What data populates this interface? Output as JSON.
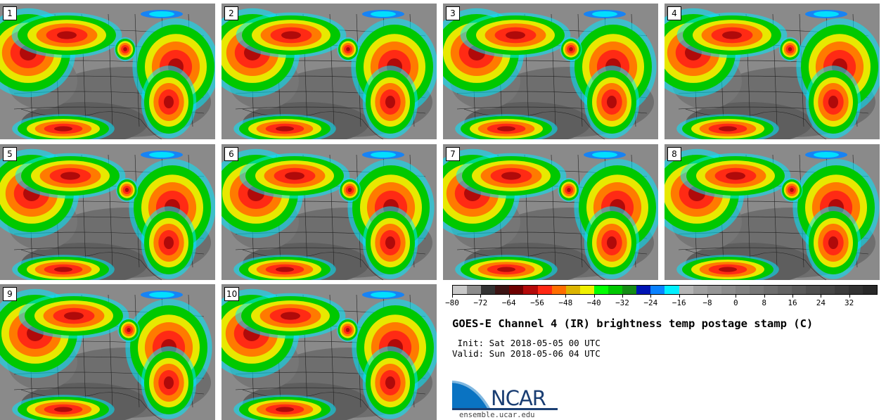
{
  "panels": [
    {
      "label": "1"
    },
    {
      "label": "2"
    },
    {
      "label": "3"
    },
    {
      "label": "4"
    },
    {
      "label": "5"
    },
    {
      "label": "6"
    },
    {
      "label": "7"
    },
    {
      "label": "8"
    },
    {
      "label": "9"
    },
    {
      "label": "10"
    }
  ],
  "colorbar": {
    "colors": [
      "#c8c8c8",
      "#8c8c8c",
      "#323232",
      "#3c1414",
      "#6e0000",
      "#b40a0a",
      "#ff2814",
      "#ff6e00",
      "#dcb400",
      "#f0f000",
      "#00ff00",
      "#00c800",
      "#148c14",
      "#0014b4",
      "#0a82ff",
      "#00f0ff",
      "#b4b4b4",
      "#a0a0a0",
      "#969696",
      "#8c8c8c",
      "#828282",
      "#787878",
      "#6e6e6e",
      "#646464",
      "#5a5a5a",
      "#505050",
      "#464646",
      "#3c3c3c",
      "#323232",
      "#282828"
    ],
    "tick_labels": [
      "−80",
      "−72",
      "−64",
      "−56",
      "−48",
      "−40",
      "−32",
      "−24",
      "−16",
      "−8",
      "0",
      "8",
      "16",
      "24",
      "32"
    ]
  },
  "title": "GOES-E Channel 4 (IR) brightness temp postage stamp (C)",
  "init": " Init: Sat 2018-05-05 00 UTC",
  "valid": "Valid: Sun 2018-05-06 04 UTC",
  "logo": {
    "text": "NCAR",
    "site": "ensemble.ucar.edu"
  }
}
